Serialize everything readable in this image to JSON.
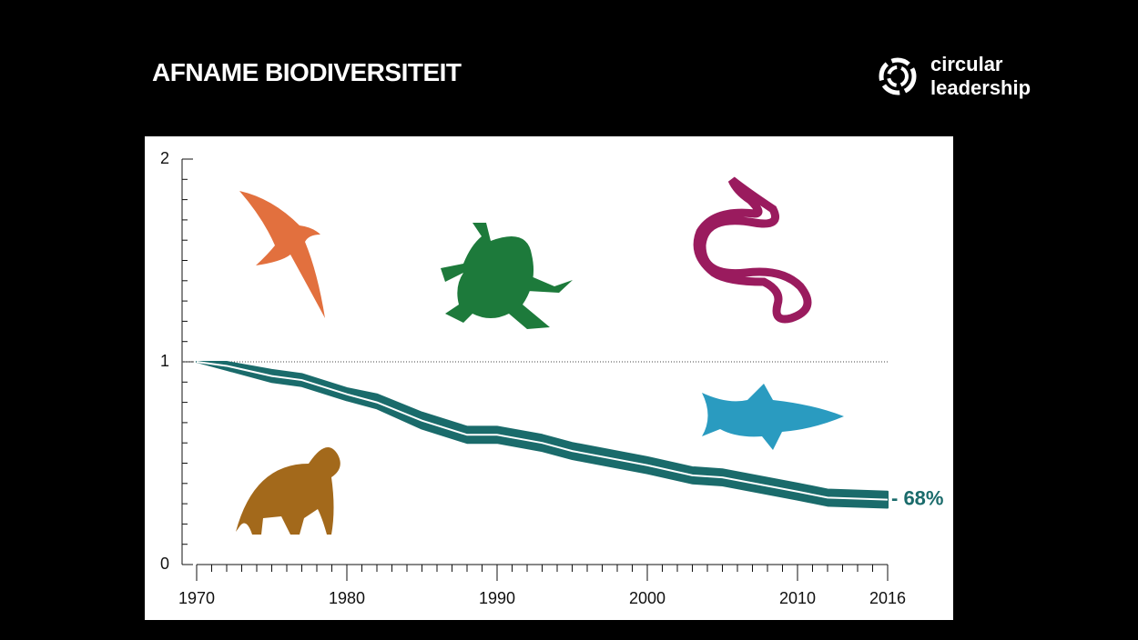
{
  "header": {
    "title": "AFNAME BIODIVERSITEIT",
    "logo_line1": "circular",
    "logo_line2": "leadership"
  },
  "chart_data": {
    "type": "band-line",
    "annotation": "- 68%",
    "color": "#1a6b6b",
    "line_color": "#ffffff",
    "annotation_color": "#1a6b6b",
    "x": [
      1970,
      1972,
      1975,
      1977,
      1980,
      1982,
      1985,
      1988,
      1990,
      1993,
      1995,
      2000,
      2003,
      2005,
      2010,
      2012,
      2016
    ],
    "values": [
      1.0,
      0.98,
      0.93,
      0.91,
      0.84,
      0.8,
      0.71,
      0.64,
      0.64,
      0.6,
      0.56,
      0.49,
      0.44,
      0.43,
      0.36,
      0.33,
      0.32
    ],
    "upper": [
      1.0,
      1.0,
      0.96,
      0.94,
      0.87,
      0.84,
      0.75,
      0.68,
      0.68,
      0.64,
      0.6,
      0.53,
      0.48,
      0.47,
      0.4,
      0.37,
      0.36
    ],
    "lower": [
      1.0,
      0.96,
      0.9,
      0.88,
      0.81,
      0.77,
      0.67,
      0.6,
      0.6,
      0.56,
      0.52,
      0.45,
      0.4,
      0.39,
      0.32,
      0.29,
      0.28
    ],
    "xlim": [
      1970,
      2016
    ],
    "ylim": [
      0,
      2
    ],
    "xticks": [
      1970,
      1980,
      1990,
      2000,
      2010,
      2016
    ],
    "yticks": [
      0,
      1,
      2
    ],
    "xminorticks": [
      1970,
      1971,
      1972,
      1973,
      1974,
      1975,
      1976,
      1977,
      1978,
      1979,
      1980,
      1981,
      1982,
      1983,
      1984,
      1985,
      1986,
      1987,
      1988,
      1989,
      1990,
      1991,
      1992,
      1993,
      1994,
      1995,
      1996,
      1997,
      1998,
      1999,
      2000,
      2001,
      2002,
      2003,
      2004,
      2005,
      2006,
      2007,
      2008,
      2009,
      2010,
      2011,
      2012,
      2013,
      2014,
      2015,
      2016
    ],
    "yminorticks": [
      0,
      0.1,
      0.2,
      0.3,
      0.4,
      0.5,
      0.6,
      0.7,
      0.8,
      0.9,
      1,
      1.1,
      1.2,
      1.3,
      1.4,
      1.5,
      1.6,
      1.7,
      1.8,
      1.9,
      2
    ],
    "reference_line": 1
  }
}
